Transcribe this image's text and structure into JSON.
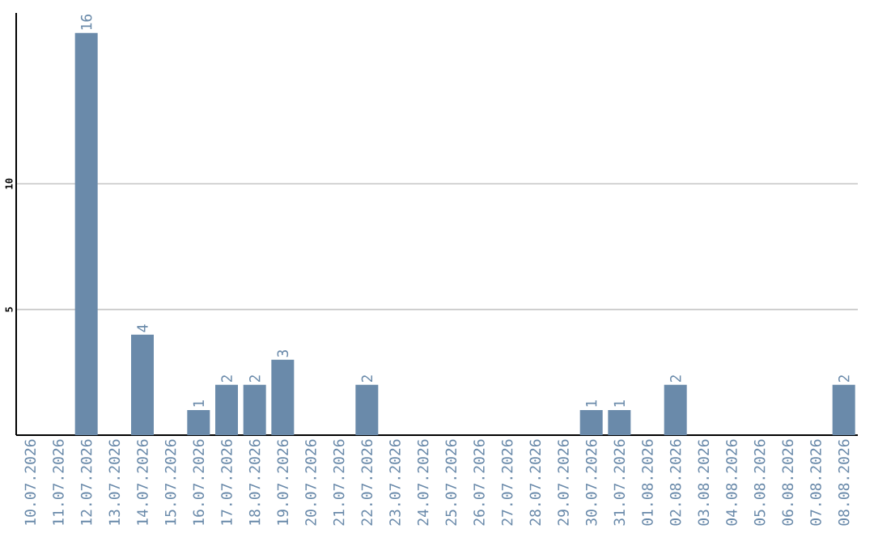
{
  "chart_data": {
    "type": "bar",
    "categories": [
      "10.07.2026",
      "11.07.2026",
      "12.07.2026",
      "13.07.2026",
      "14.07.2026",
      "15.07.2026",
      "16.07.2026",
      "17.07.2026",
      "18.07.2026",
      "19.07.2026",
      "20.07.2026",
      "21.07.2026",
      "22.07.2026",
      "23.07.2026",
      "24.07.2026",
      "25.07.2026",
      "26.07.2026",
      "27.07.2026",
      "28.07.2026",
      "29.07.2026",
      "30.07.2026",
      "31.07.2026",
      "01.08.2026",
      "02.08.2026",
      "03.08.2026",
      "04.08.2026",
      "05.08.2026",
      "06.08.2026",
      "07.08.2026",
      "08.08.2026"
    ],
    "values": [
      0,
      0,
      16,
      0,
      4,
      0,
      1,
      2,
      2,
      3,
      0,
      0,
      2,
      0,
      0,
      0,
      0,
      0,
      0,
      0,
      1,
      1,
      0,
      2,
      0,
      0,
      0,
      0,
      0,
      2
    ],
    "value_labels": [
      null,
      null,
      "16",
      null,
      "4",
      null,
      "1",
      "2",
      "2",
      "3",
      null,
      null,
      "2",
      null,
      null,
      null,
      null,
      null,
      null,
      null,
      "1",
      "1",
      null,
      "2",
      null,
      null,
      null,
      null,
      null,
      "2"
    ],
    "color": "#6a8aaa",
    "ylim": [
      0,
      16.8
    ],
    "yticks": [
      5,
      10
    ],
    "grid": "y"
  }
}
